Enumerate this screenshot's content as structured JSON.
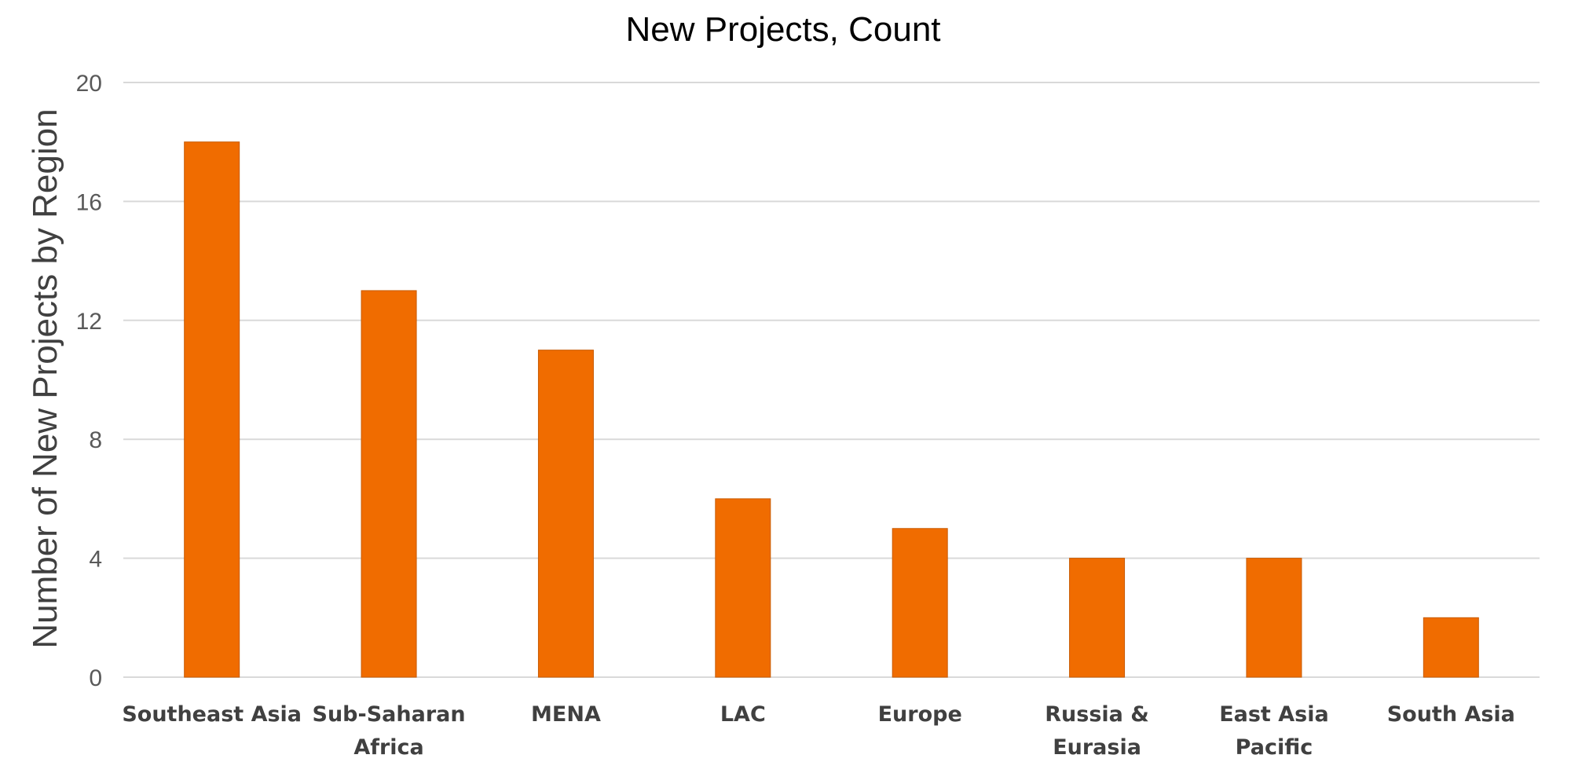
{
  "chart_data": {
    "type": "bar",
    "title": "New Projects, Count",
    "xlabel": "",
    "ylabel": "Number of New Projects by Region",
    "categories": [
      "Southeast Asia",
      "Sub-Saharan Africa",
      "MENA",
      "LAC",
      "Europe",
      "Russia & Eurasia",
      "East Asia Pacific",
      "South Asia"
    ],
    "category_lines": [
      [
        "Southeast Asia"
      ],
      [
        "Sub-Saharan",
        "Africa"
      ],
      [
        "MENA"
      ],
      [
        "LAC"
      ],
      [
        "Europe"
      ],
      [
        "Russia &",
        "Eurasia"
      ],
      [
        "East Asia",
        "Pacific"
      ],
      [
        "South Asia"
      ]
    ],
    "values": [
      18,
      13,
      11,
      6,
      5,
      4,
      4,
      2
    ],
    "ylim": [
      0,
      20
    ],
    "yticks": [
      "0",
      "4",
      "8",
      "12",
      "16",
      "20"
    ],
    "grid": true,
    "legend": "none",
    "bar_color": "#F06C00",
    "bar_edge_color": "#C85A00",
    "grid_color": "#D9D9D9"
  }
}
